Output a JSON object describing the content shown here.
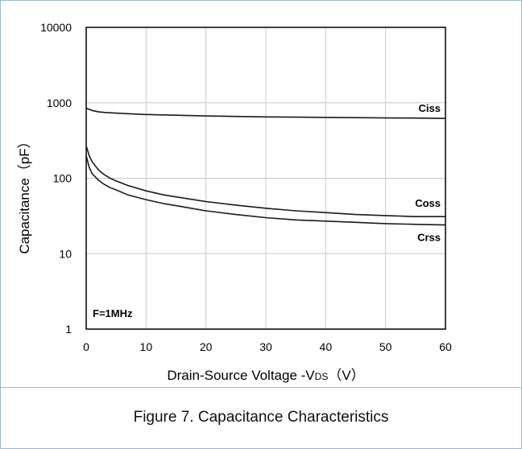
{
  "chart_data": {
    "type": "line",
    "x_scale": "linear",
    "y_scale": "log",
    "xlim": [
      0,
      60
    ],
    "ylim": [
      1,
      10000
    ],
    "x_ticks": [
      "0",
      "10",
      "20",
      "30",
      "40",
      "50",
      "60"
    ],
    "y_ticks": [
      "1",
      "10",
      "100",
      "1000",
      "10000"
    ],
    "xlabel_main": "Drain-Source Voltage -V",
    "xlabel_sub": "DS",
    "xlabel_unit": "（V）",
    "ylabel": "Capacitance（pF）",
    "annotation": "F=1MHz",
    "grid": true,
    "series": [
      {
        "name": "Ciss",
        "x": [
          0,
          1,
          2,
          3,
          5,
          8,
          10,
          15,
          20,
          25,
          30,
          35,
          40,
          45,
          50,
          55,
          60
        ],
        "values": [
          850,
          790,
          760,
          745,
          730,
          710,
          700,
          685,
          670,
          660,
          650,
          645,
          640,
          635,
          630,
          628,
          620
        ]
      },
      {
        "name": "Coss",
        "x": [
          0,
          0.5,
          1,
          2,
          3,
          4,
          5,
          7,
          10,
          13,
          16,
          20,
          25,
          30,
          35,
          40,
          45,
          50,
          55,
          60
        ],
        "values": [
          270,
          200,
          165,
          130,
          112,
          100,
          92,
          80,
          68,
          60,
          55,
          49,
          44,
          40,
          37,
          35,
          33,
          32,
          31,
          31
        ]
      },
      {
        "name": "Crss",
        "x": [
          0,
          0.5,
          1,
          2,
          3,
          4,
          5,
          7,
          10,
          13,
          16,
          20,
          25,
          30,
          35,
          40,
          45,
          50,
          55,
          60
        ],
        "values": [
          200,
          140,
          115,
          95,
          83,
          75,
          70,
          60,
          52,
          46,
          42,
          37,
          33,
          30,
          28,
          27,
          26,
          25,
          24.5,
          24
        ]
      }
    ]
  },
  "caption": "Figure 7. Capacitance Characteristics"
}
